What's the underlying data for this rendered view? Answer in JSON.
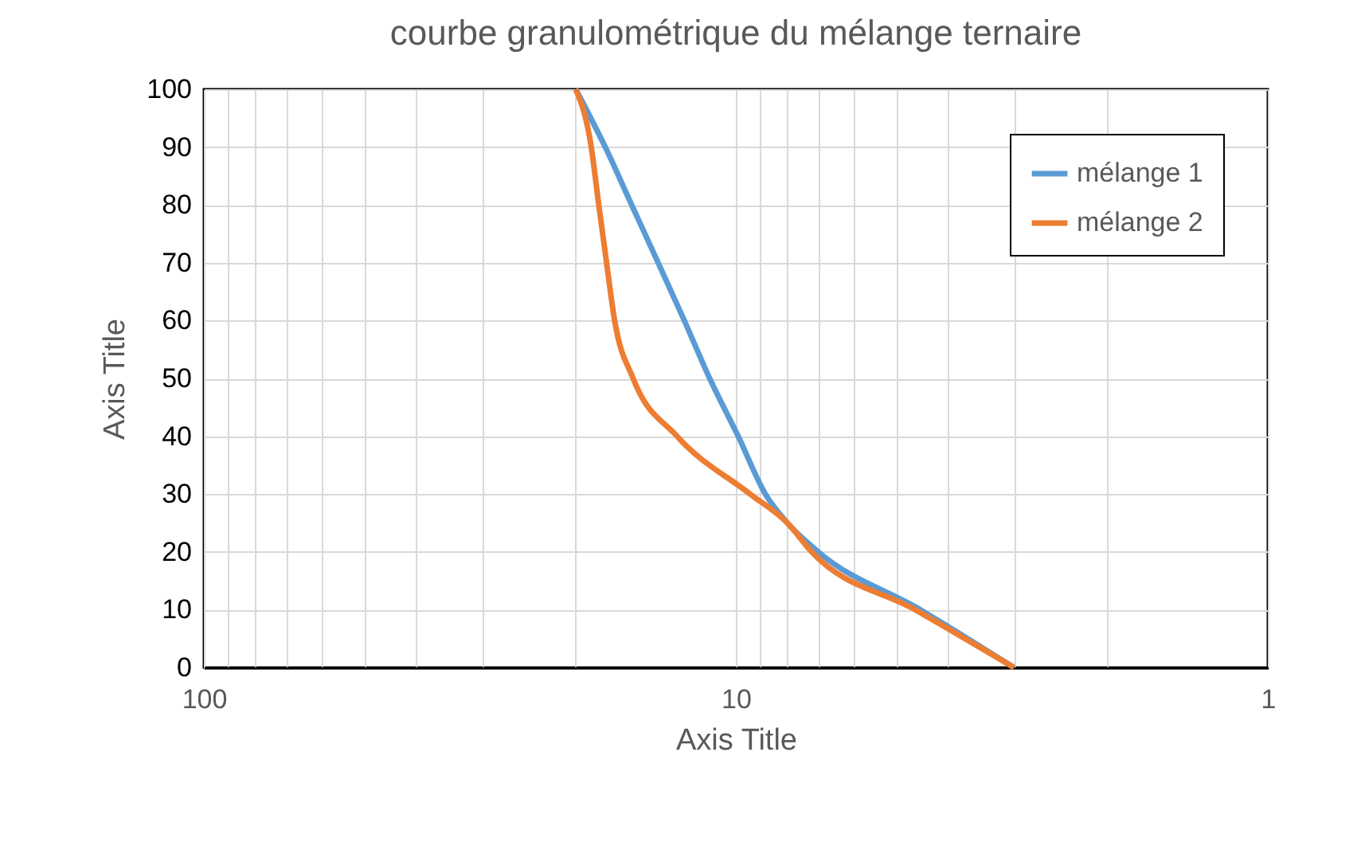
{
  "chart_data": {
    "type": "line",
    "title": "courbe granulométrique du mélange ternaire",
    "xlabel": "Axis Title",
    "ylabel": "Axis Title",
    "log": "x",
    "xlim": [
      100,
      1
    ],
    "xticks": [
      100,
      {
        "value": 90,
        "label": null
      },
      {
        "value": 80,
        "label": null
      },
      {
        "value": 70,
        "label": null
      },
      {
        "value": 60,
        "label": null
      },
      {
        "value": 50,
        "label": null
      },
      {
        "value": 40,
        "label": null
      },
      {
        "value": 30,
        "label": null
      },
      {
        "value": 20,
        "label": null
      },
      10,
      {
        "value": 9,
        "label": null
      },
      {
        "value": 8,
        "label": null
      },
      {
        "value": 7,
        "label": null
      },
      {
        "value": 6,
        "label": null
      },
      {
        "value": 5,
        "label": null
      },
      {
        "value": 4,
        "label": null
      },
      {
        "value": 3,
        "label": null
      },
      {
        "value": 2,
        "label": null
      },
      1
    ],
    "ylim": [
      0,
      100
    ],
    "yticks": [
      0,
      10,
      20,
      30,
      40,
      50,
      60,
      70,
      80,
      90,
      100
    ],
    "grid": true,
    "legend": "top right",
    "series": [
      {
        "name": "mélange 1",
        "color": "#5b9bd5",
        "x": [
          20,
          17.6,
          15.7,
          14,
          12.5,
          11.2,
          9.9,
          8.8,
          8,
          7,
          4.5,
          3
        ],
        "values": [
          100,
          90,
          80,
          70,
          60,
          50,
          40,
          30,
          25,
          20,
          10,
          0
        ]
      },
      {
        "name": "mélange 2",
        "color": "#ed7d31",
        "x": [
          20,
          18.7,
          18.1,
          17.5,
          16.9,
          15.6,
          12.9,
          9.4,
          8,
          7.2,
          4.6,
          3
        ],
        "values": [
          100,
          90,
          80,
          70,
          60,
          50,
          40,
          30,
          25,
          20,
          10,
          0
        ]
      }
    ]
  }
}
